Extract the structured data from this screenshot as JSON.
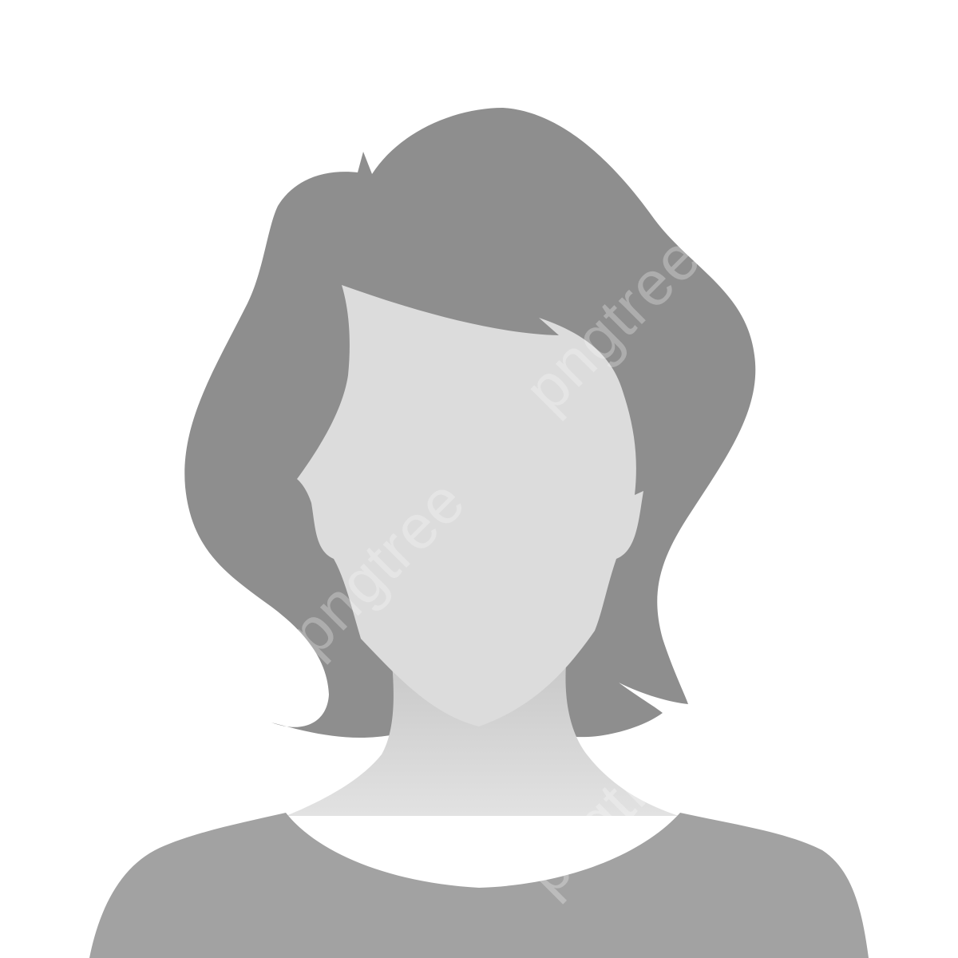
{
  "avatar": {
    "type": "female-placeholder-silhouette",
    "colors": {
      "background": "#ffffff",
      "hair": "#8e8e8e",
      "face": "#dcdcdc",
      "neck_top": "#c7c7c7",
      "neck_bottom": "#e2e2e2",
      "shirt": "#a2a2a2"
    }
  },
  "watermark": {
    "text": "pngtree"
  }
}
